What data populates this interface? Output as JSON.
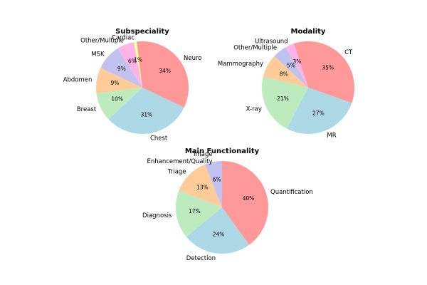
{
  "palette": {
    "red": "#ff9999",
    "blue": "#add8e6",
    "green": "#bdebbd",
    "orange": "#ffcc99",
    "lavender": "#c2c2f0",
    "pink": "#ffb3e6",
    "yellow": "#ffff99"
  },
  "chart_data": [
    {
      "type": "pie",
      "title": "Subspeciality",
      "slices": [
        {
          "label": "Neuro",
          "value": 34,
          "pct": "34%",
          "color": "red"
        },
        {
          "label": "Chest",
          "value": 31,
          "pct": "31%",
          "color": "blue"
        },
        {
          "label": "Breast",
          "value": 10,
          "pct": "10%",
          "color": "green"
        },
        {
          "label": "Abdomen",
          "value": 9,
          "pct": "9%",
          "color": "orange"
        },
        {
          "label": "MSK",
          "value": 9,
          "pct": "9%",
          "color": "lavender"
        },
        {
          "label": "Other/Multiple",
          "value": 6,
          "pct": "6%",
          "color": "pink"
        },
        {
          "label": "Cardiac",
          "value": 1,
          "pct": "1%",
          "color": "yellow"
        }
      ]
    },
    {
      "type": "pie",
      "title": "Modality",
      "slices": [
        {
          "label": "CT",
          "value": 35,
          "pct": "35%",
          "color": "red"
        },
        {
          "label": "MR",
          "value": 27,
          "pct": "27%",
          "color": "blue"
        },
        {
          "label": "X-ray",
          "value": 21,
          "pct": "21%",
          "color": "green"
        },
        {
          "label": "Mammography",
          "value": 8,
          "pct": "8%",
          "color": "orange"
        },
        {
          "label": "Other/Multiple",
          "value": 5,
          "pct": "5%",
          "color": "lavender"
        },
        {
          "label": "Ultrasound",
          "value": 3,
          "pct": "3%",
          "color": "pink"
        }
      ]
    },
    {
      "type": "pie",
      "title": "Main Functionality",
      "slices": [
        {
          "label": "Quantification",
          "value": 40,
          "pct": "40%",
          "color": "red"
        },
        {
          "label": "Detection",
          "value": 24,
          "pct": "24%",
          "color": "blue"
        },
        {
          "label": "Diagnosis",
          "value": 17,
          "pct": "17%",
          "color": "green"
        },
        {
          "label": "Triage",
          "value": 13,
          "pct": "13%",
          "color": "orange"
        },
        {
          "label": "Image\nEnhancement/Quality",
          "value": 6,
          "pct": "6%",
          "color": "lavender"
        }
      ]
    }
  ]
}
